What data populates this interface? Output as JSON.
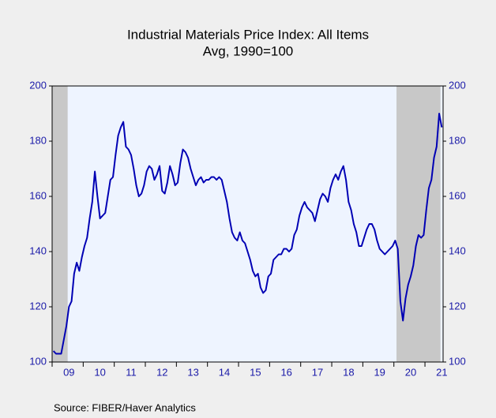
{
  "chart_data": {
    "type": "line",
    "title": "Industrial Materials Price Index: All Items",
    "subtitle": "Avg, 1990=100",
    "source": "Source:   FIBER/Haver Analytics",
    "categories": [
      null,
      null,
      null,
      null,
      null,
      null,
      "09",
      null,
      null,
      null,
      null,
      null,
      null,
      null,
      null,
      null,
      null,
      null,
      "10",
      null,
      null,
      null,
      null,
      null,
      null,
      null,
      null,
      null,
      null,
      null,
      "11",
      null,
      null,
      null,
      null,
      null,
      null,
      null,
      null,
      null,
      null,
      null,
      "12",
      null,
      null,
      null,
      null,
      null,
      null,
      null,
      null,
      null,
      null,
      null,
      "13",
      null,
      null,
      null,
      null,
      null,
      null,
      null,
      null,
      null,
      null,
      null,
      "14",
      null,
      null,
      null,
      null,
      null,
      null,
      null,
      null,
      null,
      null,
      null,
      "15",
      null,
      null,
      null,
      null,
      null,
      null,
      null,
      null,
      null,
      null,
      null,
      "16",
      null,
      null,
      null,
      null,
      null,
      null,
      null,
      null,
      null,
      null,
      null,
      "17",
      null,
      null,
      null,
      null,
      null,
      null,
      null,
      null,
      null,
      null,
      null,
      "18",
      null,
      null,
      null,
      null,
      null,
      null,
      null,
      null,
      null,
      null,
      null,
      "19",
      null,
      null,
      null,
      null,
      null,
      null,
      null,
      null,
      null,
      null,
      null,
      "20",
      null,
      null,
      null,
      null,
      null,
      null,
      null,
      null,
      null,
      null,
      null,
      "21"
    ],
    "series": [
      {
        "name": "Industrial Materials Price Index",
        "color": "#0000b4",
        "values": [
          104,
          103,
          103,
          103,
          108,
          113,
          120,
          122,
          132,
          136,
          133,
          138,
          142,
          145,
          152,
          158,
          169,
          160,
          152,
          153,
          154,
          160,
          166,
          167,
          175,
          182,
          185,
          187,
          178,
          177,
          175,
          170,
          164,
          160,
          161,
          164,
          169,
          171,
          170,
          166,
          168,
          171,
          162,
          161,
          165,
          171,
          168,
          164,
          165,
          172,
          177,
          176,
          174,
          170,
          167,
          164,
          166,
          167,
          165,
          166,
          166,
          167,
          167,
          166,
          167,
          166,
          162,
          158,
          152,
          147,
          145,
          144,
          147,
          144,
          143,
          140,
          137,
          133,
          131,
          132,
          127,
          125,
          126,
          131,
          132,
          137,
          138,
          139,
          139,
          141,
          141,
          140,
          141,
          146,
          148,
          153,
          156,
          158,
          156,
          155,
          154,
          151,
          155,
          159,
          161,
          160,
          158,
          163,
          166,
          168,
          166,
          169,
          171,
          166,
          158,
          155,
          150,
          147,
          142,
          142,
          145,
          148,
          150,
          150,
          148,
          144,
          141,
          140,
          139,
          140,
          141,
          142,
          144,
          141,
          122,
          115,
          123,
          128,
          131,
          135,
          142,
          146,
          145,
          146,
          155,
          163,
          166,
          174,
          178,
          190,
          185
        ]
      }
    ],
    "shaded_ranges": [
      [
        0,
        5
      ],
      [
        133,
        149
      ]
    ],
    "ylim": [
      100,
      200
    ],
    "yticks": [
      100,
      120,
      140,
      160,
      180,
      200
    ],
    "y2lim": [
      100,
      200
    ],
    "y2ticks": [
      100,
      120,
      140,
      160,
      180,
      200
    ]
  }
}
